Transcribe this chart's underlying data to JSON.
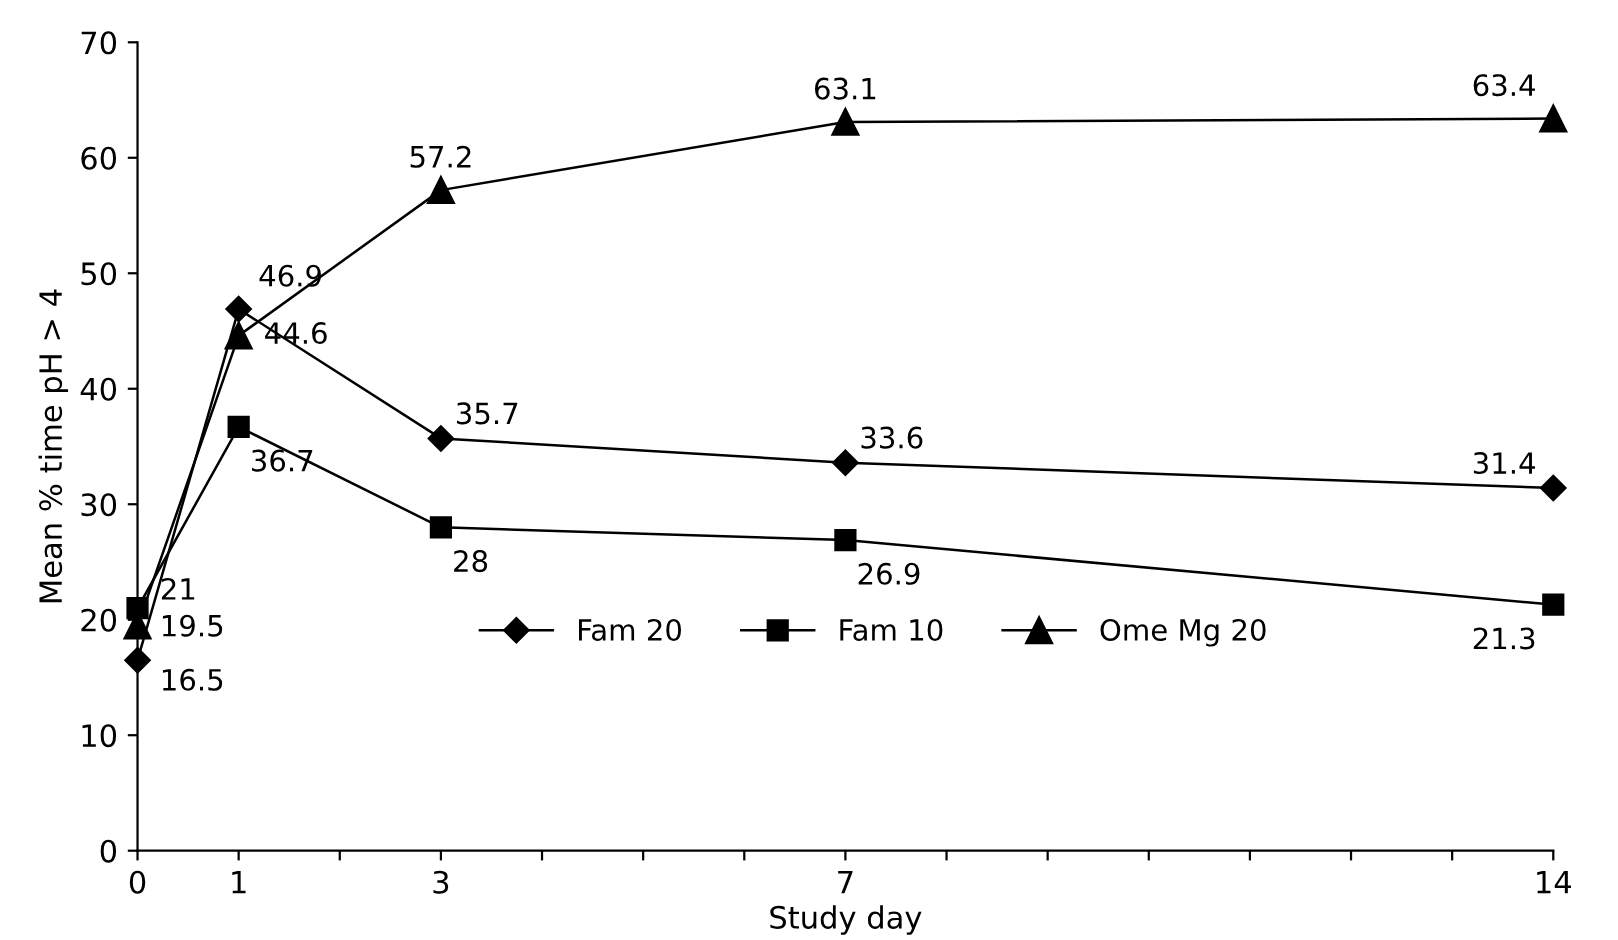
{
  "chart_data": {
    "type": "line",
    "xlabel": "Study day",
    "ylabel": "Mean % time pH > 4",
    "x": [
      0,
      1,
      3,
      7,
      14
    ],
    "series": [
      {
        "name": "Fam 20",
        "color": "#000000",
        "marker": "diamond",
        "values": [
          16.5,
          46.9,
          35.7,
          33.6,
          31.4
        ]
      },
      {
        "name": "Fam 10",
        "color": "#000000",
        "marker": "square",
        "values": [
          21,
          36.7,
          28,
          26.9,
          21.3
        ]
      },
      {
        "name": "Ome Mg 20",
        "color": "#000000",
        "marker": "triangle",
        "values": [
          19.5,
          44.6,
          57.2,
          63.1,
          63.4
        ]
      }
    ],
    "xlim": [
      0,
      14
    ],
    "ylim": [
      0,
      70
    ],
    "xticks": [
      0,
      1,
      {
        "value": 2,
        "label": null
      },
      3,
      {
        "value": 4,
        "label": null
      },
      {
        "value": 5,
        "label": null
      },
      {
        "value": 6,
        "label": null
      },
      7,
      {
        "value": 8,
        "label": null
      },
      {
        "value": 9,
        "label": null
      },
      {
        "value": 10,
        "label": null
      },
      {
        "value": 11,
        "label": null
      },
      {
        "value": 12,
        "label": null
      },
      {
        "value": 13,
        "label": null
      },
      14
    ],
    "yticks": [
      0,
      10,
      20,
      30,
      40,
      50,
      60,
      70
    ],
    "data_labels": true,
    "legend": "bottom",
    "grid": false,
    "line_style": "solid"
  }
}
